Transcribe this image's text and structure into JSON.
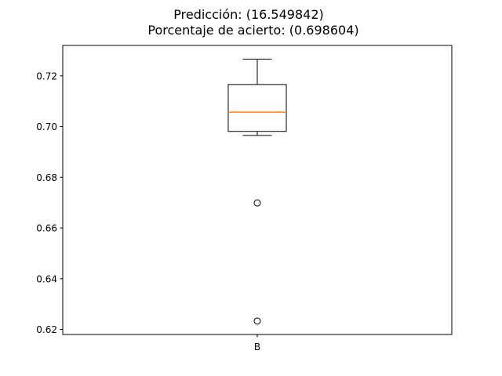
{
  "chart_data": {
    "type": "box",
    "title_lines": [
      "Predicción: (16.549842)",
      "Porcentaje de acierto: (0.698604)"
    ],
    "xlabel": "",
    "ylabel": "",
    "categories": [
      "B"
    ],
    "ylim": [
      0.618,
      0.732
    ],
    "yticks": [
      0.62,
      0.64,
      0.66,
      0.68,
      0.7,
      0.72
    ],
    "ytick_labels": [
      "0.62",
      "0.64",
      "0.66",
      "0.68",
      "0.70",
      "0.72"
    ],
    "boxes": [
      {
        "category": "B",
        "whisker_low": 0.6965,
        "q1": 0.6981,
        "median": 0.7057,
        "q3": 0.7166,
        "whisker_high": 0.7266,
        "outliers": [
          0.6699,
          0.6233
        ]
      }
    ],
    "grid": false,
    "colors": {
      "box": "#000000",
      "median": "#ff7f0e",
      "outlier_edge": "#000000"
    }
  }
}
